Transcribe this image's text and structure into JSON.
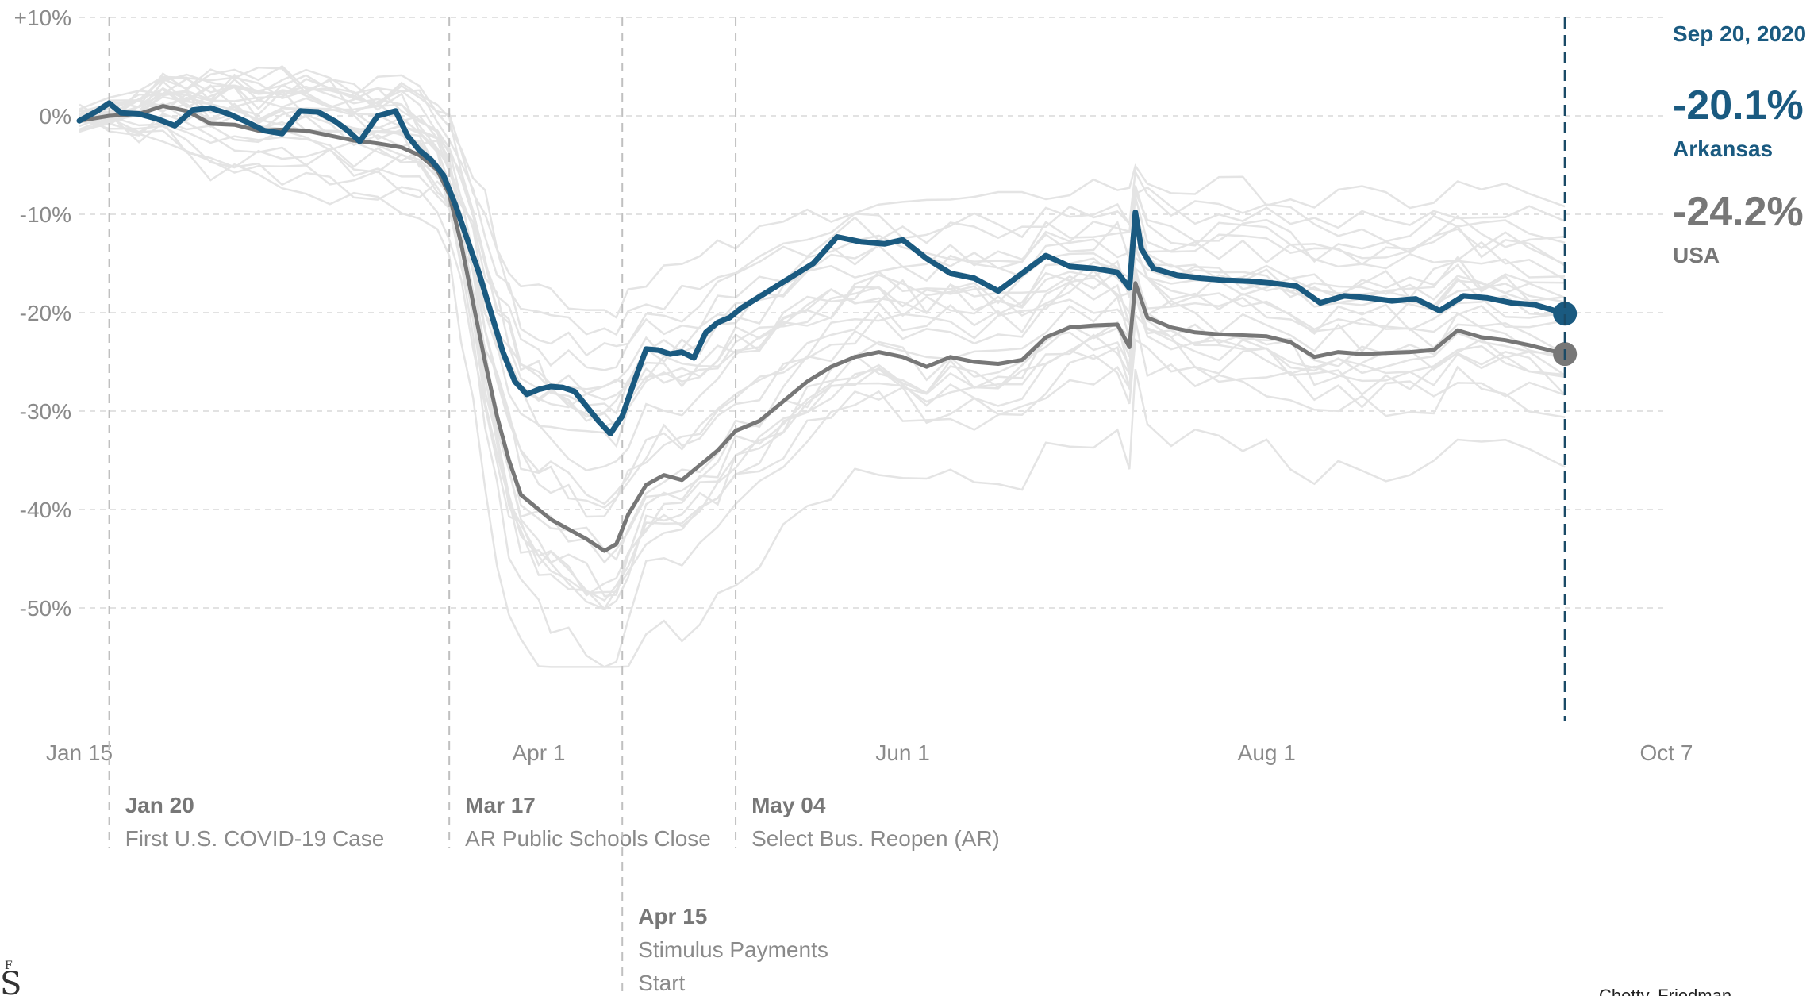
{
  "chart_data": {
    "type": "line",
    "title": "",
    "xlabel": "",
    "ylabel": "",
    "x_range": [
      "2020-01-15",
      "2020-10-07"
    ],
    "ylim": [
      -60,
      10
    ],
    "x_ticks": [
      {
        "date": "2020-01-15",
        "label": "Jan 15"
      },
      {
        "date": "2020-04-01",
        "label": "Apr 1"
      },
      {
        "date": "2020-06-01",
        "label": "Jun 1"
      },
      {
        "date": "2020-08-01",
        "label": "Aug 1"
      },
      {
        "date": "2020-10-07",
        "label": "Oct 7"
      }
    ],
    "y_ticks": [
      {
        "value": 10,
        "label": "+10%"
      },
      {
        "value": 0,
        "label": "0%"
      },
      {
        "value": -10,
        "label": "-10%"
      },
      {
        "value": -20,
        "label": "-20%"
      },
      {
        "value": -30,
        "label": "-30%"
      },
      {
        "value": -40,
        "label": "-40%"
      },
      {
        "value": -50,
        "label": "-50%"
      }
    ],
    "grid": true,
    "events": [
      {
        "date": "2020-01-20",
        "date_label": "Jan 20",
        "lines": [
          "First U.S. COVID-19 Case"
        ],
        "row": 1
      },
      {
        "date": "2020-03-17",
        "date_label": "Mar 17",
        "lines": [
          "AR Public Schools Close"
        ],
        "row": 1
      },
      {
        "date": "2020-04-15",
        "date_label": "Apr 15",
        "lines": [
          "Stimulus Payments",
          "Start"
        ],
        "row": 2
      },
      {
        "date": "2020-05-04",
        "date_label": "May 04",
        "lines": [
          "Select Bus. Reopen (AR)"
        ],
        "row": 1
      }
    ],
    "readout": {
      "date": "2020-09-20",
      "date_label": "Sep 20, 2020",
      "entries": [
        {
          "value_label": "-20.1%",
          "name": "Arkansas",
          "color": "#1a5a80"
        },
        {
          "value_label": "-24.2%",
          "name": "USA",
          "color": "#777777"
        }
      ]
    },
    "series": [
      {
        "name": "Arkansas",
        "color": "#1a5a80",
        "points": [
          [
            "2020-01-15",
            -0.5
          ],
          [
            "2020-01-18",
            0.5
          ],
          [
            "2020-01-20",
            1.3
          ],
          [
            "2020-01-22",
            0.3
          ],
          [
            "2020-01-25",
            0.2
          ],
          [
            "2020-01-28",
            -0.3
          ],
          [
            "2020-01-31",
            -1.0
          ],
          [
            "2020-02-03",
            0.6
          ],
          [
            "2020-02-06",
            0.8
          ],
          [
            "2020-02-09",
            0.2
          ],
          [
            "2020-02-12",
            -0.6
          ],
          [
            "2020-02-15",
            -1.5
          ],
          [
            "2020-02-18",
            -1.8
          ],
          [
            "2020-02-21",
            0.5
          ],
          [
            "2020-02-24",
            0.4
          ],
          [
            "2020-02-27",
            -0.6
          ],
          [
            "2020-02-29",
            -1.5
          ],
          [
            "2020-03-02",
            -2.6
          ],
          [
            "2020-03-05",
            0.0
          ],
          [
            "2020-03-08",
            0.5
          ],
          [
            "2020-03-10",
            -2.0
          ],
          [
            "2020-03-12",
            -3.5
          ],
          [
            "2020-03-14",
            -4.5
          ],
          [
            "2020-03-16",
            -6.0
          ],
          [
            "2020-03-18",
            -9.0
          ],
          [
            "2020-03-20",
            -12.5
          ],
          [
            "2020-03-22",
            -16.0
          ],
          [
            "2020-03-24",
            -20.0
          ],
          [
            "2020-03-26",
            -24.0
          ],
          [
            "2020-03-28",
            -27.0
          ],
          [
            "2020-03-30",
            -28.3
          ],
          [
            "2020-04-01",
            -27.8
          ],
          [
            "2020-04-03",
            -27.5
          ],
          [
            "2020-04-05",
            -27.6
          ],
          [
            "2020-04-07",
            -28.0
          ],
          [
            "2020-04-09",
            -29.5
          ],
          [
            "2020-04-11",
            -31.0
          ],
          [
            "2020-04-13",
            -32.3
          ],
          [
            "2020-04-15",
            -30.5
          ],
          [
            "2020-04-17",
            -27.0
          ],
          [
            "2020-04-19",
            -23.7
          ],
          [
            "2020-04-21",
            -23.8
          ],
          [
            "2020-04-23",
            -24.2
          ],
          [
            "2020-04-25",
            -24.0
          ],
          [
            "2020-04-27",
            -24.6
          ],
          [
            "2020-04-29",
            -22.0
          ],
          [
            "2020-05-01",
            -21.0
          ],
          [
            "2020-05-03",
            -20.5
          ],
          [
            "2020-05-05",
            -19.5
          ],
          [
            "2020-05-09",
            -18.0
          ],
          [
            "2020-05-13",
            -16.5
          ],
          [
            "2020-05-17",
            -15.0
          ],
          [
            "2020-05-21",
            -12.3
          ],
          [
            "2020-05-25",
            -12.8
          ],
          [
            "2020-05-29",
            -13.0
          ],
          [
            "2020-06-01",
            -12.6
          ],
          [
            "2020-06-05",
            -14.5
          ],
          [
            "2020-06-09",
            -16.0
          ],
          [
            "2020-06-13",
            -16.5
          ],
          [
            "2020-06-17",
            -17.8
          ],
          [
            "2020-06-21",
            -16.0
          ],
          [
            "2020-06-25",
            -14.2
          ],
          [
            "2020-06-29",
            -15.3
          ],
          [
            "2020-07-03",
            -15.5
          ],
          [
            "2020-07-07",
            -15.9
          ],
          [
            "2020-07-09",
            -17.5
          ],
          [
            "2020-07-10",
            -9.8
          ],
          [
            "2020-07-11",
            -13.5
          ],
          [
            "2020-07-13",
            -15.5
          ],
          [
            "2020-07-17",
            -16.2
          ],
          [
            "2020-07-21",
            -16.5
          ],
          [
            "2020-07-25",
            -16.7
          ],
          [
            "2020-07-29",
            -16.8
          ],
          [
            "2020-08-02",
            -17.0
          ],
          [
            "2020-08-06",
            -17.3
          ],
          [
            "2020-08-10",
            -19.0
          ],
          [
            "2020-08-14",
            -18.3
          ],
          [
            "2020-08-18",
            -18.5
          ],
          [
            "2020-08-22",
            -18.8
          ],
          [
            "2020-08-26",
            -18.6
          ],
          [
            "2020-08-30",
            -19.8
          ],
          [
            "2020-09-03",
            -18.3
          ],
          [
            "2020-09-07",
            -18.5
          ],
          [
            "2020-09-11",
            -19.0
          ],
          [
            "2020-09-15",
            -19.2
          ],
          [
            "2020-09-20",
            -20.1
          ]
        ]
      },
      {
        "name": "USA",
        "color": "#777777",
        "points": [
          [
            "2020-01-15",
            -0.5
          ],
          [
            "2020-01-20",
            0.0
          ],
          [
            "2020-01-25",
            0.2
          ],
          [
            "2020-01-29",
            1.0
          ],
          [
            "2020-02-02",
            0.5
          ],
          [
            "2020-02-06",
            -0.8
          ],
          [
            "2020-02-10",
            -0.9
          ],
          [
            "2020-02-14",
            -1.5
          ],
          [
            "2020-02-18",
            -1.4
          ],
          [
            "2020-02-22",
            -1.5
          ],
          [
            "2020-02-26",
            -2.0
          ],
          [
            "2020-03-01",
            -2.5
          ],
          [
            "2020-03-05",
            -2.8
          ],
          [
            "2020-03-09",
            -3.2
          ],
          [
            "2020-03-12",
            -4.0
          ],
          [
            "2020-03-15",
            -5.5
          ],
          [
            "2020-03-17",
            -8.0
          ],
          [
            "2020-03-19",
            -13.0
          ],
          [
            "2020-03-21",
            -19.0
          ],
          [
            "2020-03-23",
            -25.0
          ],
          [
            "2020-03-25",
            -30.5
          ],
          [
            "2020-03-27",
            -35.0
          ],
          [
            "2020-03-29",
            -38.5
          ],
          [
            "2020-04-01",
            -40.0
          ],
          [
            "2020-04-03",
            -41.0
          ],
          [
            "2020-04-06",
            -42.0
          ],
          [
            "2020-04-09",
            -43.0
          ],
          [
            "2020-04-12",
            -44.2
          ],
          [
            "2020-04-14",
            -43.5
          ],
          [
            "2020-04-16",
            -40.5
          ],
          [
            "2020-04-19",
            -37.5
          ],
          [
            "2020-04-22",
            -36.5
          ],
          [
            "2020-04-25",
            -37.0
          ],
          [
            "2020-04-28",
            -35.5
          ],
          [
            "2020-05-01",
            -34.0
          ],
          [
            "2020-05-04",
            -32.0
          ],
          [
            "2020-05-08",
            -31.0
          ],
          [
            "2020-05-12",
            -29.0
          ],
          [
            "2020-05-16",
            -27.0
          ],
          [
            "2020-05-20",
            -25.5
          ],
          [
            "2020-05-24",
            -24.5
          ],
          [
            "2020-05-28",
            -24.0
          ],
          [
            "2020-06-01",
            -24.5
          ],
          [
            "2020-06-05",
            -25.5
          ],
          [
            "2020-06-09",
            -24.5
          ],
          [
            "2020-06-13",
            -25.0
          ],
          [
            "2020-06-17",
            -25.2
          ],
          [
            "2020-06-21",
            -24.8
          ],
          [
            "2020-06-25",
            -22.5
          ],
          [
            "2020-06-29",
            -21.5
          ],
          [
            "2020-07-03",
            -21.3
          ],
          [
            "2020-07-07",
            -21.2
          ],
          [
            "2020-07-09",
            -23.5
          ],
          [
            "2020-07-10",
            -17.0
          ],
          [
            "2020-07-12",
            -20.5
          ],
          [
            "2020-07-16",
            -21.5
          ],
          [
            "2020-07-20",
            -22.0
          ],
          [
            "2020-07-24",
            -22.2
          ],
          [
            "2020-07-28",
            -22.3
          ],
          [
            "2020-08-01",
            -22.4
          ],
          [
            "2020-08-05",
            -23.0
          ],
          [
            "2020-08-09",
            -24.5
          ],
          [
            "2020-08-13",
            -24.0
          ],
          [
            "2020-08-17",
            -24.2
          ],
          [
            "2020-08-21",
            -24.1
          ],
          [
            "2020-08-25",
            -24.0
          ],
          [
            "2020-08-29",
            -23.8
          ],
          [
            "2020-09-02",
            -21.8
          ],
          [
            "2020-09-06",
            -22.5
          ],
          [
            "2020-09-10",
            -22.8
          ],
          [
            "2020-09-14",
            -23.3
          ],
          [
            "2020-09-20",
            -24.2
          ]
        ]
      }
    ]
  },
  "footer": {
    "corner_mark": "S",
    "corner_mark_small": "F",
    "credit": "Chetty, Friedman"
  }
}
